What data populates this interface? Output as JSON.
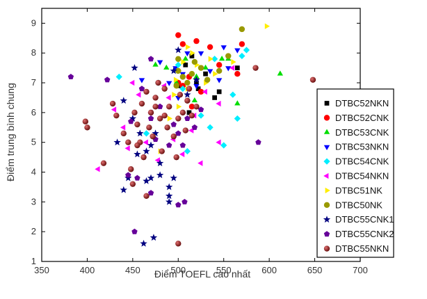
{
  "chart_data": {
    "type": "scatter",
    "title": "",
    "xlabel": "Điểm TOEFL cao nhất",
    "ylabel": "Điểm trung bình chung",
    "xlim": [
      350,
      700
    ],
    "ylim": [
      1,
      9.5
    ],
    "xticks": [
      "350",
      "400",
      "450",
      "500",
      "550",
      "600",
      "650",
      "700"
    ],
    "yticks": [
      "1",
      "2",
      "3",
      "4",
      "5",
      "6",
      "7",
      "8",
      "9"
    ],
    "grid": false,
    "legend_position": "right",
    "series": [
      {
        "name": "DTBC52NKN",
        "marker": "square",
        "color": "#000000",
        "points": [
          [
            500,
            6.9
          ],
          [
            512,
            6.0
          ],
          [
            520,
            7.0
          ],
          [
            522,
            6.8
          ],
          [
            540,
            6.5
          ],
          [
            545,
            6.7
          ],
          [
            565,
            7.5
          ],
          [
            530,
            7.3
          ],
          [
            508,
            7.6
          ],
          [
            515,
            7.9
          ]
        ]
      },
      {
        "name": "DTBC52CNK",
        "marker": "circle",
        "color": "#ff0000",
        "points": [
          [
            500,
            8.6
          ],
          [
            505,
            8.3
          ],
          [
            520,
            8.4
          ],
          [
            535,
            8.2
          ],
          [
            512,
            7.2
          ],
          [
            505,
            6.9
          ],
          [
            525,
            6.7
          ],
          [
            545,
            7.6
          ],
          [
            565,
            7.3
          ],
          [
            570,
            8.3
          ],
          [
            500,
            7.0
          ],
          [
            515,
            6.2
          ]
        ]
      },
      {
        "name": "DTBC53CNK",
        "marker": "triangle-up",
        "color": "#00dd00",
        "points": [
          [
            475,
            7.6
          ],
          [
            487,
            7.5
          ],
          [
            498,
            7.0
          ],
          [
            520,
            7.2
          ],
          [
            548,
            7.8
          ],
          [
            555,
            7.8
          ],
          [
            565,
            6.3
          ],
          [
            612,
            7.3
          ],
          [
            518,
            6.4
          ],
          [
            508,
            7.8
          ],
          [
            530,
            7.5
          ]
        ]
      },
      {
        "name": "DTBC53NKN",
        "marker": "triangle-down",
        "color": "#0000ff",
        "points": [
          [
            460,
            7.1
          ],
          [
            480,
            7.7
          ],
          [
            497,
            7.5
          ],
          [
            510,
            8.0
          ],
          [
            525,
            8.0
          ],
          [
            535,
            7.4
          ],
          [
            550,
            8.2
          ],
          [
            565,
            8.1
          ],
          [
            500,
            6.5
          ],
          [
            490,
            7.0
          ],
          [
            520,
            6.9
          ],
          [
            545,
            7.1
          ],
          [
            505,
            7.3
          ],
          [
            555,
            7.5
          ]
        ]
      },
      {
        "name": "DTBC54CNK",
        "marker": "diamond",
        "color": "#00eeff",
        "points": [
          [
            435,
            7.2
          ],
          [
            465,
            5.3
          ],
          [
            478,
            7.0
          ],
          [
            505,
            6.8
          ],
          [
            510,
            4.7
          ],
          [
            525,
            5.9
          ],
          [
            535,
            5.5
          ],
          [
            550,
            4.9
          ],
          [
            560,
            6.6
          ],
          [
            565,
            5.8
          ],
          [
            575,
            8.1
          ],
          [
            570,
            7.9
          ],
          [
            500,
            7.6
          ],
          [
            540,
            7.8
          ]
        ]
      },
      {
        "name": "DTBC54NKN",
        "marker": "triangle-left",
        "color": "#ff00ff",
        "points": [
          [
            412,
            4.1
          ],
          [
            430,
            6.1
          ],
          [
            440,
            5.5
          ],
          [
            445,
            4.8
          ],
          [
            450,
            7.0
          ],
          [
            465,
            5.0
          ],
          [
            478,
            4.4
          ],
          [
            495,
            5.1
          ],
          [
            505,
            4.6
          ],
          [
            515,
            5.4
          ],
          [
            525,
            4.3
          ],
          [
            545,
            5.0
          ],
          [
            545,
            6.3
          ],
          [
            530,
            6.7
          ],
          [
            518,
            5.9
          ],
          [
            490,
            6.5
          ],
          [
            560,
            7.5
          ],
          [
            485,
            6.9
          ],
          [
            470,
            6.0
          ],
          [
            457,
            6.6
          ]
        ]
      },
      {
        "name": "DTBC51NK",
        "marker": "triangle-right",
        "color": "#ffee00",
        "points": [
          [
            480,
            4.7
          ],
          [
            490,
            5.8
          ],
          [
            497,
            7.1
          ],
          [
            500,
            7.4
          ],
          [
            505,
            7.7
          ],
          [
            510,
            8.2
          ],
          [
            515,
            8.0
          ],
          [
            530,
            7.0
          ],
          [
            540,
            7.3
          ],
          [
            560,
            7.7
          ],
          [
            597,
            8.9
          ],
          [
            510,
            6.8
          ],
          [
            520,
            7.6
          ],
          [
            500,
            6.2
          ],
          [
            495,
            6.6
          ],
          [
            535,
            7.8
          ]
        ]
      },
      {
        "name": "DTBC50NK",
        "marker": "circle",
        "color": "#999900",
        "points": [
          [
            500,
            7.4
          ],
          [
            505,
            7.2
          ],
          [
            510,
            7.0
          ],
          [
            518,
            7.7
          ],
          [
            525,
            7.5
          ],
          [
            532,
            7.1
          ],
          [
            545,
            7.4
          ],
          [
            555,
            7.9
          ],
          [
            570,
            8.8
          ],
          [
            498,
            6.9
          ],
          [
            515,
            7.3
          ],
          [
            500,
            7.8
          ]
        ]
      },
      {
        "name": "DTBC55CNK1",
        "marker": "star",
        "color": "#000080",
        "points": [
          [
            440,
            6.4
          ],
          [
            450,
            5.8
          ],
          [
            452,
            7.5
          ],
          [
            458,
            5.3
          ],
          [
            455,
            4.6
          ],
          [
            465,
            4.7
          ],
          [
            470,
            4.9
          ],
          [
            475,
            5.3
          ],
          [
            480,
            4.3
          ],
          [
            480,
            3.9
          ],
          [
            490,
            3.5
          ],
          [
            490,
            3.2
          ],
          [
            490,
            3.0
          ],
          [
            495,
            3.8
          ],
          [
            470,
            3.8
          ],
          [
            465,
            3.7
          ],
          [
            445,
            3.8
          ],
          [
            440,
            3.4
          ],
          [
            462,
            1.6
          ],
          [
            473,
            1.8
          ],
          [
            433,
            5.0
          ],
          [
            510,
            6.6
          ],
          [
            520,
            7.1
          ],
          [
            495,
            7.4
          ],
          [
            500,
            8.1
          ]
        ]
      },
      {
        "name": "DTBC55CNK2",
        "marker": "pentagon",
        "color": "#660099",
        "points": [
          [
            382,
            7.2
          ],
          [
            422,
            7.1
          ],
          [
            448,
            5.7
          ],
          [
            460,
            6.8
          ],
          [
            470,
            7.8
          ],
          [
            475,
            5.1
          ],
          [
            490,
            4.9
          ],
          [
            495,
            5.6
          ],
          [
            500,
            5.3
          ],
          [
            505,
            4.9
          ],
          [
            510,
            5.8
          ],
          [
            518,
            5.5
          ],
          [
            525,
            6.1
          ],
          [
            445,
            3.9
          ],
          [
            455,
            3.8
          ],
          [
            470,
            3.3
          ],
          [
            452,
            2.0
          ],
          [
            500,
            2.9
          ],
          [
            507,
            3.0
          ],
          [
            588,
            5.0
          ],
          [
            480,
            6.2
          ],
          [
            470,
            5.8
          ]
        ]
      },
      {
        "name": "DTBC55NKN",
        "marker": "sphere",
        "color": "#8b1a1a",
        "points": [
          [
            398,
            5.7
          ],
          [
            400,
            5.5
          ],
          [
            418,
            4.3
          ],
          [
            428,
            6.3
          ],
          [
            432,
            5.9
          ],
          [
            440,
            5.3
          ],
          [
            445,
            5.0
          ],
          [
            448,
            4.1
          ],
          [
            450,
            3.6
          ],
          [
            452,
            6.0
          ],
          [
            455,
            5.6
          ],
          [
            458,
            5.0
          ],
          [
            460,
            6.3
          ],
          [
            462,
            4.5
          ],
          [
            465,
            3.2
          ],
          [
            468,
            5.5
          ],
          [
            470,
            6.0
          ],
          [
            472,
            5.2
          ],
          [
            475,
            6.5
          ],
          [
            478,
            7.0
          ],
          [
            480,
            5.8
          ],
          [
            482,
            4.7
          ],
          [
            485,
            6.8
          ],
          [
            488,
            5.5
          ],
          [
            490,
            6.2
          ],
          [
            495,
            5.2
          ],
          [
            498,
            4.5
          ],
          [
            500,
            1.6
          ],
          [
            500,
            5.8
          ],
          [
            502,
            6.6
          ],
          [
            505,
            6.0
          ],
          [
            508,
            5.4
          ],
          [
            510,
            6.4
          ],
          [
            512,
            6.8
          ],
          [
            515,
            5.9
          ],
          [
            585,
            7.5
          ],
          [
            648,
            7.1
          ],
          [
            520,
            6.2
          ],
          [
            455,
            4.9
          ],
          [
            465,
            6.7
          ],
          [
            475,
            6.2
          ],
          [
            485,
            5.9
          ]
        ]
      }
    ]
  }
}
